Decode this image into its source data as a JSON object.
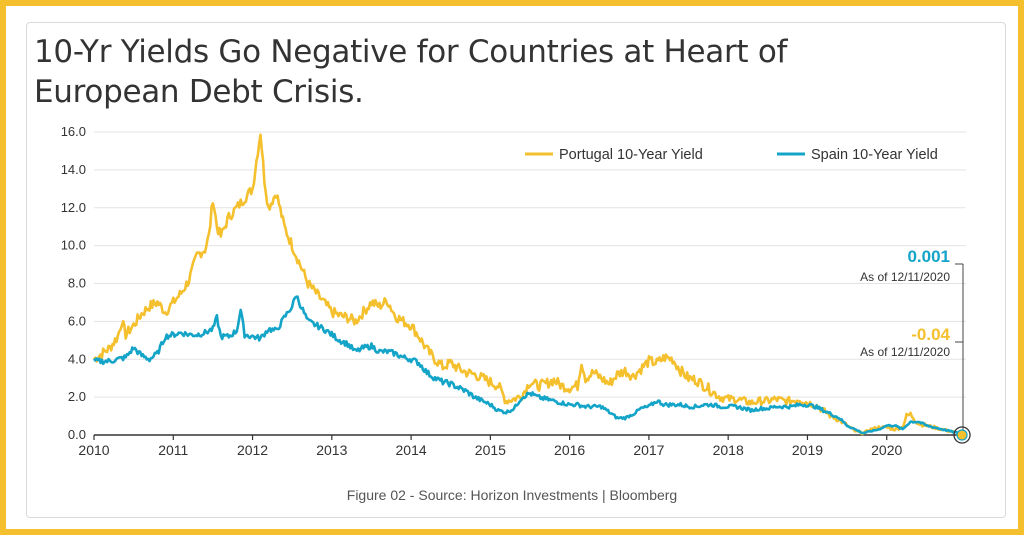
{
  "title": "10-Yr Yields Go Negative for Countries at Heart of European Debt Crisis.",
  "caption": "Figure 02 - Source: Horizon Investments | Bloomberg",
  "colors": {
    "portugal": "#F5C02E",
    "spain": "#14A4C8",
    "frame": "#F5C02E"
  },
  "chart_data": {
    "type": "line",
    "title": "10-Yr Yields Go Negative for Countries at Heart of European Debt Crisis.",
    "xlabel": "",
    "ylabel": "",
    "xlim": [
      2010,
      2021
    ],
    "ylim": [
      0,
      16.0
    ],
    "grid": true,
    "legend_position": "top-right",
    "x_ticks": [
      "2010",
      "2011",
      "2012",
      "2013",
      "2014",
      "2015",
      "2016",
      "2017",
      "2018",
      "2019",
      "2020"
    ],
    "y_ticks": [
      "0.0",
      "2.0",
      "4.0",
      "6.0",
      "8.0",
      "10.0",
      "12.0",
      "14.0",
      "16.0"
    ],
    "series": [
      {
        "name": "Portugal 10-Year Yield",
        "color": "#F5C02E",
        "x": [
          2010.0,
          2010.1,
          2010.2,
          2010.3,
          2010.35,
          2010.4,
          2010.5,
          2010.6,
          2010.7,
          2010.8,
          2010.9,
          2011.0,
          2011.1,
          2011.2,
          2011.3,
          2011.4,
          2011.45,
          2011.5,
          2011.55,
          2011.6,
          2011.7,
          2011.8,
          2011.9,
          2012.0,
          2012.05,
          2012.1,
          2012.15,
          2012.2,
          2012.3,
          2012.4,
          2012.5,
          2012.6,
          2012.7,
          2012.8,
          2012.9,
          2013.0,
          2013.1,
          2013.2,
          2013.3,
          2013.4,
          2013.5,
          2013.6,
          2013.7,
          2013.8,
          2013.9,
          2014.0,
          2014.1,
          2014.2,
          2014.3,
          2014.4,
          2014.5,
          2014.6,
          2014.7,
          2014.8,
          2014.9,
          2015.0,
          2015.1,
          2015.2,
          2015.3,
          2015.4,
          2015.5,
          2015.6,
          2015.7,
          2015.8,
          2015.9,
          2016.0,
          2016.1,
          2016.15,
          2016.2,
          2016.3,
          2016.4,
          2016.5,
          2016.6,
          2016.7,
          2016.8,
          2016.9,
          2017.0,
          2017.1,
          2017.2,
          2017.3,
          2017.4,
          2017.5,
          2017.6,
          2017.7,
          2017.8,
          2017.9,
          2018.0,
          2018.1,
          2018.2,
          2018.3,
          2018.4,
          2018.5,
          2018.6,
          2018.7,
          2018.8,
          2018.9,
          2019.0,
          2019.1,
          2019.2,
          2019.3,
          2019.4,
          2019.5,
          2019.6,
          2019.7,
          2019.8,
          2019.9,
          2020.0,
          2020.1,
          2020.2,
          2020.25,
          2020.3,
          2020.4,
          2020.5,
          2020.6,
          2020.7,
          2020.8,
          2020.9,
          2020.95
        ],
        "values": [
          4.0,
          4.3,
          4.6,
          5.2,
          6.0,
          5.3,
          5.8,
          6.4,
          6.8,
          7.0,
          6.5,
          7.0,
          7.5,
          8.2,
          9.5,
          9.8,
          10.5,
          12.5,
          11.0,
          10.5,
          11.5,
          12.0,
          12.5,
          13.0,
          14.5,
          16.0,
          13.5,
          12.0,
          12.8,
          11.0,
          10.0,
          9.0,
          8.0,
          7.5,
          7.0,
          6.5,
          6.3,
          6.2,
          6.0,
          6.5,
          7.0,
          6.8,
          7.1,
          6.3,
          6.0,
          5.8,
          5.2,
          4.5,
          4.0,
          3.6,
          3.8,
          3.5,
          3.3,
          3.2,
          3.0,
          2.8,
          2.6,
          1.8,
          1.9,
          2.1,
          2.8,
          2.6,
          2.7,
          2.9,
          2.6,
          2.5,
          2.6,
          3.9,
          3.0,
          3.3,
          3.0,
          2.7,
          3.2,
          3.4,
          3.1,
          3.5,
          3.9,
          3.8,
          4.1,
          4.0,
          3.4,
          3.0,
          2.9,
          2.6,
          2.3,
          2.0,
          1.9,
          1.9,
          1.8,
          1.7,
          1.8,
          1.8,
          1.9,
          1.8,
          1.8,
          1.9,
          1.7,
          1.6,
          1.3,
          1.0,
          0.8,
          0.5,
          0.2,
          0.1,
          0.3,
          0.4,
          0.4,
          0.3,
          0.4,
          1.0,
          1.1,
          0.6,
          0.5,
          0.4,
          0.3,
          0.2,
          0.1,
          -0.04
        ]
      },
      {
        "name": "Spain 10-Year Yield",
        "color": "#14A4C8",
        "x": [
          2010.0,
          2010.1,
          2010.2,
          2010.3,
          2010.4,
          2010.5,
          2010.6,
          2010.7,
          2010.8,
          2010.9,
          2011.0,
          2011.1,
          2011.2,
          2011.3,
          2011.4,
          2011.5,
          2011.55,
          2011.6,
          2011.7,
          2011.8,
          2011.85,
          2011.9,
          2012.0,
          2012.1,
          2012.2,
          2012.3,
          2012.4,
          2012.5,
          2012.55,
          2012.6,
          2012.7,
          2012.8,
          2012.9,
          2013.0,
          2013.1,
          2013.2,
          2013.3,
          2013.4,
          2013.5,
          2013.6,
          2013.7,
          2013.8,
          2013.9,
          2014.0,
          2014.1,
          2014.2,
          2014.3,
          2014.4,
          2014.5,
          2014.6,
          2014.7,
          2014.8,
          2014.9,
          2015.0,
          2015.1,
          2015.2,
          2015.3,
          2015.4,
          2015.5,
          2015.6,
          2015.7,
          2015.8,
          2015.9,
          2016.0,
          2016.1,
          2016.2,
          2016.3,
          2016.4,
          2016.5,
          2016.6,
          2016.7,
          2016.8,
          2016.9,
          2017.0,
          2017.1,
          2017.2,
          2017.3,
          2017.4,
          2017.5,
          2017.6,
          2017.7,
          2017.8,
          2017.9,
          2018.0,
          2018.1,
          2018.2,
          2018.3,
          2018.4,
          2018.5,
          2018.6,
          2018.7,
          2018.8,
          2018.9,
          2019.0,
          2019.1,
          2019.2,
          2019.3,
          2019.4,
          2019.5,
          2019.6,
          2019.7,
          2019.8,
          2019.9,
          2020.0,
          2020.1,
          2020.2,
          2020.3,
          2020.4,
          2020.5,
          2020.6,
          2020.7,
          2020.8,
          2020.9,
          2020.95
        ],
        "values": [
          3.9,
          3.9,
          3.9,
          4.0,
          4.1,
          4.6,
          4.2,
          4.0,
          4.3,
          5.2,
          5.3,
          5.4,
          5.3,
          5.3,
          5.4,
          5.6,
          6.2,
          5.2,
          5.2,
          5.5,
          6.6,
          5.3,
          5.2,
          5.1,
          5.6,
          5.5,
          6.2,
          6.8,
          7.4,
          6.9,
          6.0,
          5.8,
          5.6,
          5.3,
          5.0,
          4.8,
          4.4,
          4.6,
          4.7,
          4.4,
          4.4,
          4.3,
          4.1,
          4.0,
          3.8,
          3.3,
          3.0,
          2.8,
          2.7,
          2.5,
          2.3,
          2.0,
          1.8,
          1.6,
          1.3,
          1.2,
          1.4,
          2.0,
          2.2,
          2.0,
          1.9,
          1.8,
          1.7,
          1.6,
          1.6,
          1.5,
          1.5,
          1.5,
          1.2,
          0.9,
          0.9,
          1.1,
          1.4,
          1.5,
          1.8,
          1.6,
          1.6,
          1.6,
          1.5,
          1.5,
          1.6,
          1.6,
          1.5,
          1.5,
          1.5,
          1.4,
          1.3,
          1.4,
          1.4,
          1.5,
          1.5,
          1.5,
          1.6,
          1.6,
          1.5,
          1.3,
          1.1,
          0.9,
          0.5,
          0.3,
          0.1,
          0.2,
          0.3,
          0.5,
          0.5,
          0.3,
          0.7,
          0.7,
          0.5,
          0.4,
          0.3,
          0.2,
          0.1,
          0.001
        ]
      }
    ],
    "annotations": [
      {
        "value": "0.001",
        "note": "As of 12/11/2020",
        "series": "Spain 10-Year Yield"
      },
      {
        "value": "-0.04",
        "note": "As of 12/11/2020",
        "series": "Portugal 10-Year Yield"
      }
    ]
  }
}
